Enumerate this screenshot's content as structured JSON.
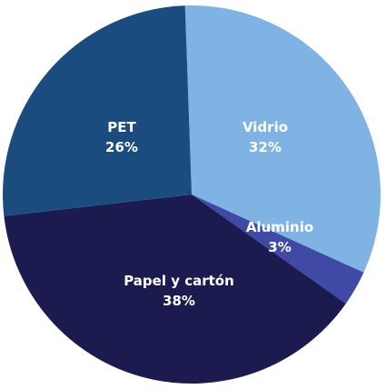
{
  "chart_data": {
    "type": "pie",
    "slices": [
      {
        "name": "Vidrio",
        "value": 32,
        "label": "32%",
        "color": "#7fb3e3"
      },
      {
        "name": "Aluminio",
        "value": 3,
        "label": "3%",
        "color": "#3e4aa6"
      },
      {
        "name": "Papel y cartón",
        "value": 38,
        "label": "38%",
        "color": "#1c1b4f"
      },
      {
        "name": "PET",
        "value": 26,
        "label": "26%",
        "color": "#1a4c80"
      }
    ]
  }
}
